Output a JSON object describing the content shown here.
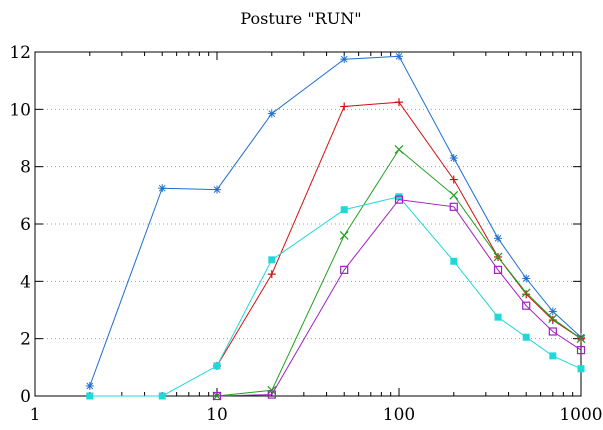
{
  "chart_data": {
    "type": "line",
    "title": "Posture \"RUN\"",
    "xlabel": "",
    "ylabel": "",
    "xscale": "log",
    "xlim": [
      1,
      1000
    ],
    "ylim": [
      0,
      12
    ],
    "x_ticks": [
      1,
      10,
      100,
      1000
    ],
    "x_tick_labels": [
      "1",
      "10",
      "100",
      "1000"
    ],
    "y_ticks": [
      0,
      2,
      4,
      6,
      8,
      10,
      12
    ],
    "y_tick_labels": [
      "0",
      "2",
      "4",
      "6",
      "8",
      "10",
      "12"
    ],
    "grid": true,
    "legend": false,
    "series": [
      {
        "color": "#1f6fd0",
        "marker": "asterisk",
        "x": [
          2,
          5,
          10,
          20,
          50,
          100,
          200,
          350,
          500,
          700,
          1000
        ],
        "values": [
          0.35,
          7.25,
          7.2,
          9.85,
          11.75,
          11.85,
          8.3,
          5.5,
          4.1,
          2.95,
          2.05
        ]
      },
      {
        "color": "#d01010",
        "marker": "plus",
        "x": [
          10,
          20,
          50,
          100,
          200,
          350,
          500,
          700,
          1000
        ],
        "values": [
          1.05,
          4.25,
          10.1,
          10.25,
          7.55,
          4.85,
          3.55,
          2.65,
          2.0
        ]
      },
      {
        "color": "#20a020",
        "marker": "cross",
        "x": [
          10,
          20,
          50,
          100,
          200,
          350,
          500,
          700,
          1000
        ],
        "values": [
          0.0,
          0.2,
          5.6,
          8.6,
          7.0,
          4.85,
          3.6,
          2.7,
          2.0
        ]
      },
      {
        "color": "#20d8d8",
        "marker": "filled-square",
        "x": [
          2,
          5,
          10,
          20,
          50,
          100,
          200,
          350,
          500,
          700,
          1000
        ],
        "values": [
          0.0,
          0.0,
          1.05,
          4.75,
          6.5,
          6.95,
          4.7,
          2.75,
          2.05,
          1.4,
          0.95
        ]
      },
      {
        "color": "#a020c0",
        "marker": "open-square",
        "x": [
          10,
          20,
          50,
          100,
          200,
          350,
          500,
          700,
          1000
        ],
        "values": [
          0.0,
          0.05,
          4.4,
          6.85,
          6.6,
          4.4,
          3.15,
          2.25,
          1.6
        ]
      }
    ]
  }
}
